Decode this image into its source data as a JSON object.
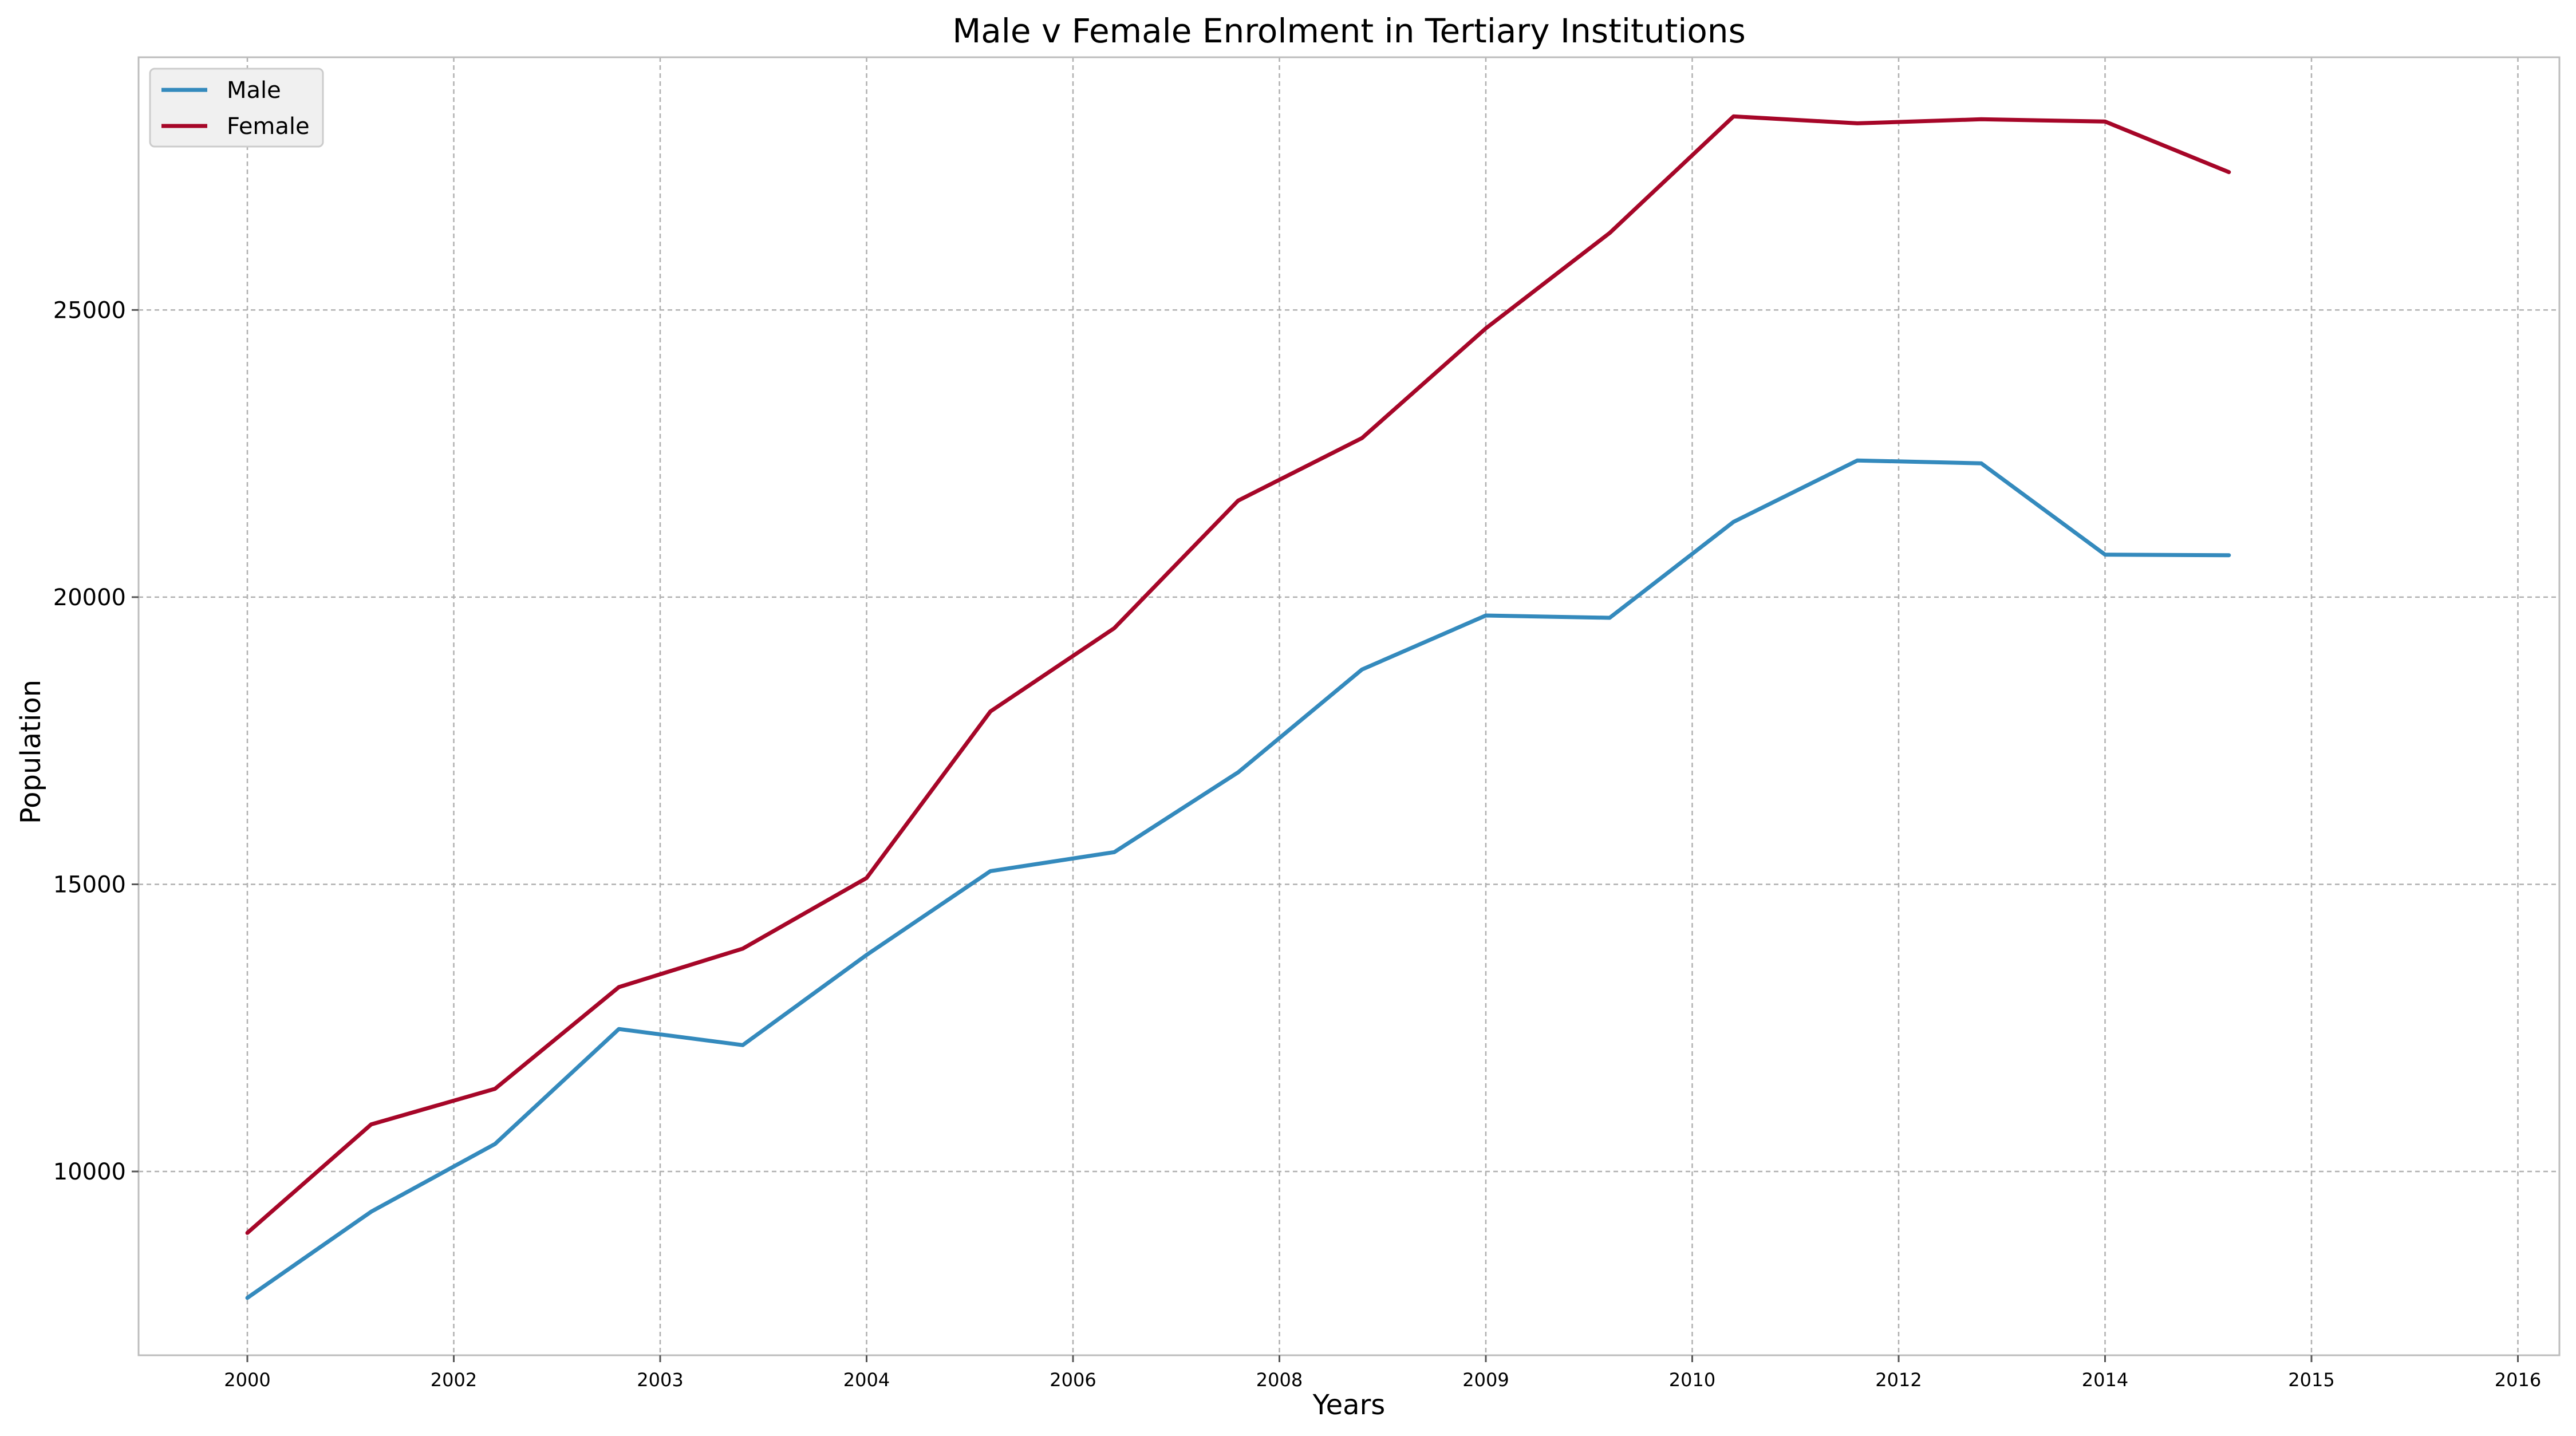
{
  "chart_data": {
    "type": "line",
    "title": "Male v Female Enrolment in Tertiary Institutions",
    "xlabel": "Years",
    "ylabel": "Population",
    "x_tick_labels": [
      "2000",
      "2002",
      "2003",
      "2004",
      "2006",
      "2008",
      "2009",
      "2010",
      "2012",
      "2014",
      "2015",
      "2016"
    ],
    "y_ticks": [
      10000,
      15000,
      20000,
      25000
    ],
    "y_tick_labels": [
      "10000",
      "15000",
      "20000",
      "25000"
    ],
    "ylim": [
      6800,
      29400
    ],
    "grid": true,
    "legend_position": "top-left",
    "series": [
      {
        "name": "Male",
        "color": "#348ABD",
        "values": [
          7800,
          9300,
          10480,
          12480,
          12200,
          13770,
          15230,
          15560,
          16950,
          18740,
          19680,
          19640,
          21310,
          22380,
          22330,
          20740,
          20730
        ]
      },
      {
        "name": "Female",
        "color": "#A60628",
        "values": [
          8930,
          10820,
          11440,
          13210,
          13880,
          15110,
          18010,
          19460,
          21680,
          22770,
          24680,
          26340,
          28370,
          28250,
          28320,
          28280,
          27400
        ]
      }
    ]
  }
}
